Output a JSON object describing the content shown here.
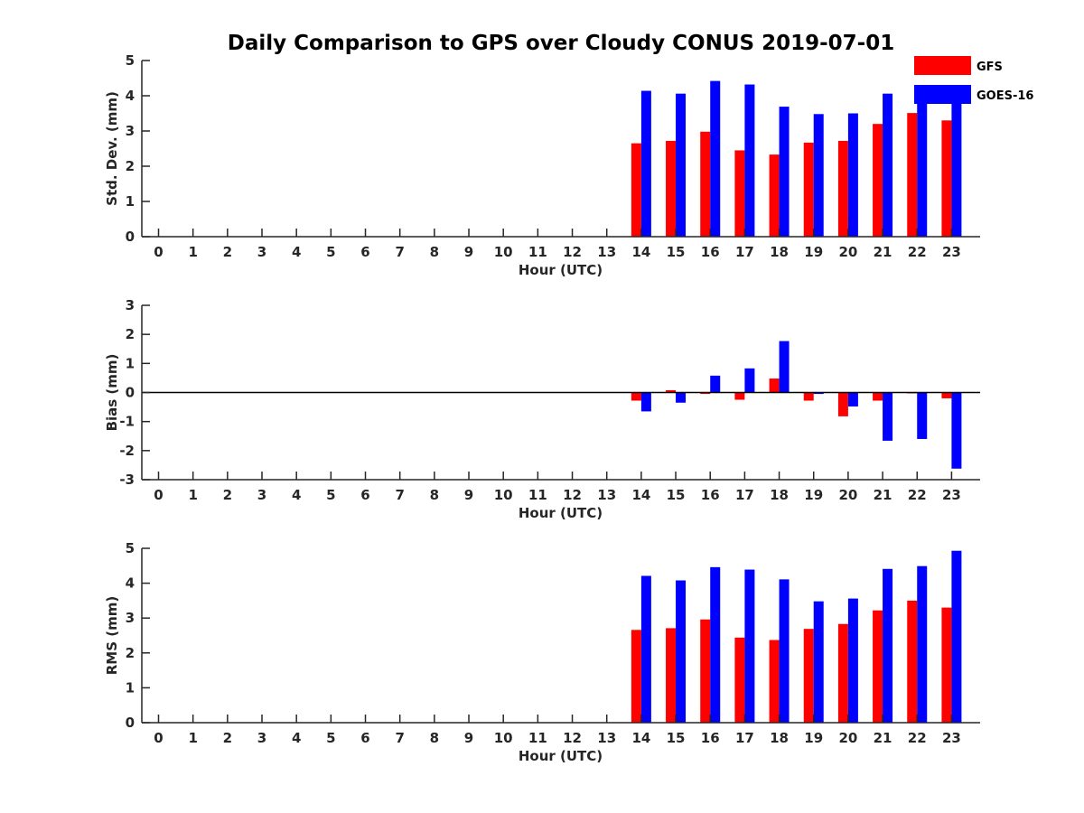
{
  "title": "Daily Comparison to GPS over Cloudy CONUS 2019-07-01",
  "legend": [
    {
      "name": "GFS",
      "color": "#ff0000"
    },
    {
      "name": "GOES-16",
      "color": "#0000ff"
    }
  ],
  "chart_data": [
    {
      "type": "bar",
      "ylabel": "Std. Dev. (mm)",
      "xlabel": "Hour (UTC)",
      "ylim": [
        0,
        5
      ],
      "yticks": [
        0,
        1,
        2,
        3,
        4,
        5
      ],
      "categories": [
        "0",
        "1",
        "2",
        "3",
        "4",
        "5",
        "6",
        "7",
        "8",
        "9",
        "10",
        "11",
        "12",
        "13",
        "14",
        "15",
        "16",
        "17",
        "18",
        "19",
        "20",
        "21",
        "22",
        "23"
      ],
      "series": [
        {
          "name": "GFS",
          "values": [
            null,
            null,
            null,
            null,
            null,
            null,
            null,
            null,
            null,
            null,
            null,
            null,
            null,
            null,
            2.65,
            2.72,
            2.98,
            2.45,
            2.33,
            2.67,
            2.72,
            3.2,
            3.51,
            3.3
          ]
        },
        {
          "name": "GOES-16",
          "values": [
            null,
            null,
            null,
            null,
            null,
            null,
            null,
            null,
            null,
            null,
            null,
            null,
            null,
            null,
            4.14,
            4.06,
            4.42,
            4.32,
            3.69,
            3.48,
            3.5,
            4.06,
            4.18,
            4.3
          ]
        }
      ]
    },
    {
      "type": "bar",
      "ylabel": "Bias (mm)",
      "xlabel": "Hour (UTC)",
      "ylim": [
        -3,
        3
      ],
      "yticks": [
        -3,
        -2,
        -1,
        0,
        1,
        2,
        3
      ],
      "zero_line": true,
      "categories": [
        "0",
        "1",
        "2",
        "3",
        "4",
        "5",
        "6",
        "7",
        "8",
        "9",
        "10",
        "11",
        "12",
        "13",
        "14",
        "15",
        "16",
        "17",
        "18",
        "19",
        "20",
        "21",
        "22",
        "23"
      ],
      "series": [
        {
          "name": "GFS",
          "values": [
            null,
            null,
            null,
            null,
            null,
            null,
            null,
            null,
            null,
            null,
            null,
            null,
            null,
            null,
            -0.28,
            0.08,
            -0.05,
            -0.25,
            0.48,
            -0.28,
            -0.82,
            -0.28,
            -0.03,
            -0.2
          ]
        },
        {
          "name": "GOES-16",
          "values": [
            null,
            null,
            null,
            null,
            null,
            null,
            null,
            null,
            null,
            null,
            null,
            null,
            null,
            null,
            -0.65,
            -0.35,
            0.58,
            0.83,
            1.77,
            -0.05,
            -0.48,
            -1.66,
            -1.6,
            -2.62
          ]
        }
      ]
    },
    {
      "type": "bar",
      "ylabel": "RMS (mm)",
      "xlabel": "Hour (UTC)",
      "ylim": [
        0,
        5
      ],
      "yticks": [
        0,
        1,
        2,
        3,
        4,
        5
      ],
      "categories": [
        "0",
        "1",
        "2",
        "3",
        "4",
        "5",
        "6",
        "7",
        "8",
        "9",
        "10",
        "11",
        "12",
        "13",
        "14",
        "15",
        "16",
        "17",
        "18",
        "19",
        "20",
        "21",
        "22",
        "23"
      ],
      "series": [
        {
          "name": "GFS",
          "values": [
            null,
            null,
            null,
            null,
            null,
            null,
            null,
            null,
            null,
            null,
            null,
            null,
            null,
            null,
            2.66,
            2.71,
            2.96,
            2.44,
            2.37,
            2.69,
            2.83,
            3.22,
            3.5,
            3.3
          ]
        },
        {
          "name": "GOES-16",
          "values": [
            null,
            null,
            null,
            null,
            null,
            null,
            null,
            null,
            null,
            null,
            null,
            null,
            null,
            null,
            4.21,
            4.08,
            4.46,
            4.39,
            4.11,
            3.48,
            3.56,
            4.41,
            4.49,
            4.93
          ]
        }
      ]
    }
  ]
}
